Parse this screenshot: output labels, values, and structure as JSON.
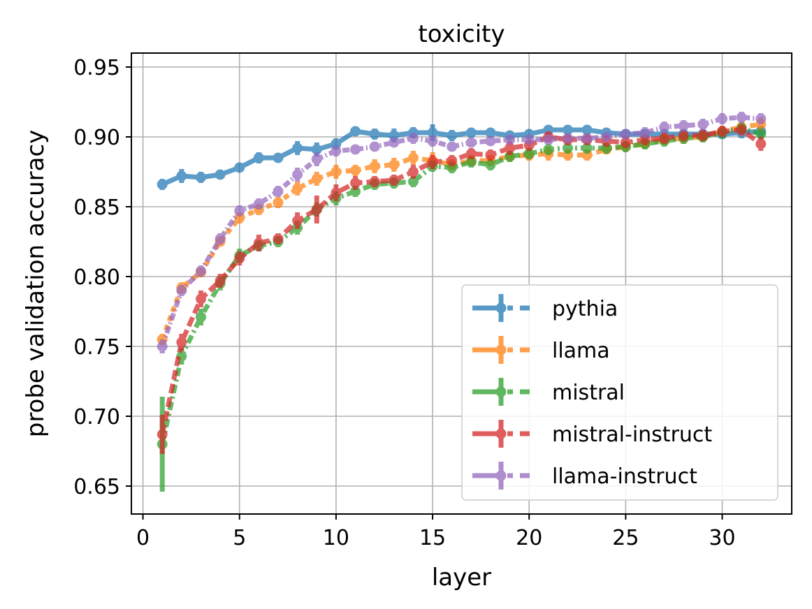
{
  "chart_data": {
    "type": "line",
    "title": "toxicity",
    "xlabel": "layer",
    "ylabel": "probe validation accuracy",
    "xlim": [
      -0.6,
      33.6
    ],
    "ylim": [
      0.63,
      0.96
    ],
    "xticks": [
      0,
      5,
      10,
      15,
      20,
      25,
      30
    ],
    "xtick_labels": [
      "0",
      "5",
      "10",
      "15",
      "20",
      "25",
      "30"
    ],
    "yticks": [
      0.65,
      0.7,
      0.75,
      0.8,
      0.85,
      0.9,
      0.95
    ],
    "ytick_labels": [
      "0.65",
      "0.70",
      "0.75",
      "0.80",
      "0.85",
      "0.90",
      "0.95"
    ],
    "grid": true,
    "legend_position": "lower right",
    "x": [
      1,
      2,
      3,
      4,
      5,
      6,
      7,
      8,
      9,
      10,
      11,
      12,
      13,
      14,
      15,
      16,
      17,
      18,
      19,
      20,
      21,
      22,
      23,
      24,
      25,
      26,
      27,
      28,
      29,
      30,
      31,
      32
    ],
    "series": [
      {
        "name": "pythia",
        "color": "#1f77b4",
        "values": [
          0.866,
          0.872,
          0.871,
          0.873,
          0.878,
          0.885,
          0.885,
          0.892,
          0.891,
          0.895,
          0.904,
          0.902,
          0.901,
          0.903,
          0.903,
          0.901,
          0.903,
          0.903,
          0.901,
          0.902,
          0.905,
          0.905,
          0.905,
          0.903,
          0.902,
          0.902,
          0.902,
          0.902,
          0.902,
          0.902,
          0.903,
          0.904
        ],
        "errors": [
          0.004,
          0.005,
          0.004,
          0.003,
          0.003,
          0.004,
          0.003,
          0.005,
          0.005,
          0.004,
          0.003,
          0.004,
          0.005,
          0.004,
          0.006,
          0.004,
          0.003,
          0.003,
          0.003,
          0.003,
          0.003,
          0.003,
          0.003,
          0.003,
          0.003,
          0.003,
          0.003,
          0.003,
          0.003,
          0.003,
          0.004,
          0.004
        ]
      },
      {
        "name": "llama",
        "color": "#ff7f0e",
        "values": [
          0.755,
          0.792,
          0.803,
          0.825,
          0.842,
          0.848,
          0.853,
          0.863,
          0.87,
          0.875,
          0.876,
          0.879,
          0.88,
          0.885,
          0.883,
          0.88,
          0.883,
          0.883,
          0.886,
          0.887,
          0.888,
          0.887,
          0.887,
          0.891,
          0.893,
          0.895,
          0.898,
          0.899,
          0.9,
          0.904,
          0.907,
          0.909
        ],
        "errors": [
          0.004,
          0.004,
          0.003,
          0.003,
          0.004,
          0.004,
          0.004,
          0.005,
          0.005,
          0.005,
          0.004,
          0.005,
          0.005,
          0.005,
          0.006,
          0.004,
          0.004,
          0.004,
          0.003,
          0.004,
          0.005,
          0.004,
          0.004,
          0.003,
          0.003,
          0.003,
          0.004,
          0.004,
          0.003,
          0.003,
          0.004,
          0.005
        ]
      },
      {
        "name": "mistral",
        "color": "#2ca02c",
        "values": [
          0.68,
          0.743,
          0.771,
          0.795,
          0.815,
          0.822,
          0.825,
          0.835,
          0.848,
          0.856,
          0.861,
          0.866,
          0.867,
          0.868,
          0.879,
          0.878,
          0.882,
          0.88,
          0.886,
          0.888,
          0.891,
          0.892,
          0.892,
          0.892,
          0.893,
          0.895,
          0.897,
          0.899,
          0.9,
          0.903,
          0.906,
          0.902
        ],
        "errors": [
          0.034,
          0.006,
          0.006,
          0.005,
          0.005,
          0.004,
          0.004,
          0.005,
          0.005,
          0.005,
          0.004,
          0.004,
          0.004,
          0.004,
          0.004,
          0.004,
          0.004,
          0.004,
          0.004,
          0.004,
          0.004,
          0.004,
          0.004,
          0.004,
          0.004,
          0.004,
          0.004,
          0.004,
          0.004,
          0.004,
          0.004,
          0.004
        ]
      },
      {
        "name": "mistral-instruct",
        "color": "#d62728",
        "values": [
          0.687,
          0.753,
          0.784,
          0.797,
          0.813,
          0.824,
          0.827,
          0.84,
          0.848,
          0.86,
          0.867,
          0.868,
          0.869,
          0.875,
          0.882,
          0.883,
          0.888,
          0.887,
          0.892,
          0.894,
          0.9,
          0.898,
          0.898,
          0.897,
          0.896,
          0.898,
          0.899,
          0.901,
          0.901,
          0.904,
          0.905,
          0.895
        ],
        "errors": [
          0.014,
          0.006,
          0.006,
          0.005,
          0.005,
          0.006,
          0.004,
          0.006,
          0.01,
          0.006,
          0.005,
          0.004,
          0.004,
          0.005,
          0.005,
          0.004,
          0.004,
          0.004,
          0.005,
          0.004,
          0.004,
          0.004,
          0.004,
          0.004,
          0.004,
          0.004,
          0.004,
          0.004,
          0.004,
          0.004,
          0.004,
          0.005
        ]
      },
      {
        "name": "llama-instruct",
        "color": "#9467bd",
        "values": [
          0.75,
          0.79,
          0.804,
          0.827,
          0.847,
          0.852,
          0.861,
          0.873,
          0.884,
          0.89,
          0.891,
          0.893,
          0.896,
          0.899,
          0.897,
          0.893,
          0.896,
          0.897,
          0.898,
          0.898,
          0.898,
          0.899,
          0.899,
          0.9,
          0.902,
          0.903,
          0.907,
          0.908,
          0.909,
          0.913,
          0.914,
          0.913
        ],
        "errors": [
          0.005,
          0.004,
          0.004,
          0.004,
          0.004,
          0.004,
          0.004,
          0.005,
          0.005,
          0.004,
          0.003,
          0.003,
          0.003,
          0.004,
          0.004,
          0.003,
          0.003,
          0.003,
          0.003,
          0.003,
          0.003,
          0.003,
          0.003,
          0.003,
          0.003,
          0.004,
          0.004,
          0.004,
          0.004,
          0.004,
          0.004,
          0.004
        ]
      }
    ]
  }
}
